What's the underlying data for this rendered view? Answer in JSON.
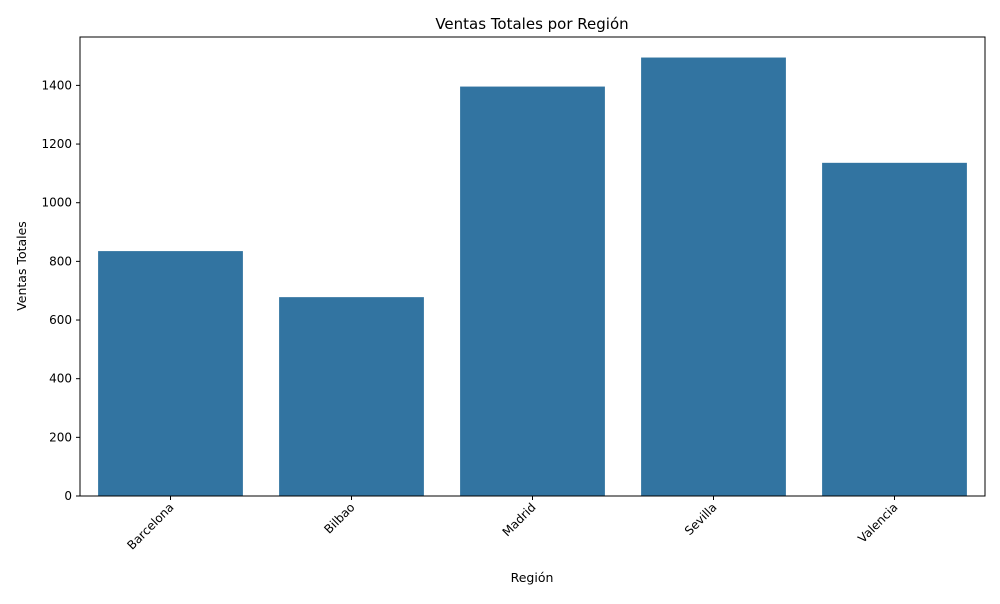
{
  "chart_data": {
    "type": "bar",
    "title": "Ventas Totales por Región",
    "xlabel": "Región",
    "ylabel": "Ventas Totales",
    "categories": [
      "Barcelona",
      "Bilbao",
      "Madrid",
      "Sevilla",
      "Valencia"
    ],
    "values": [
      835,
      678,
      1396,
      1495,
      1136
    ],
    "ylim": [
      0,
      1565
    ],
    "yticks": [
      0,
      200,
      400,
      600,
      800,
      1000,
      1200,
      1400
    ],
    "ytick_labels": [
      "0",
      "200",
      "400",
      "600",
      "800",
      "1000",
      "1200",
      "1400"
    ],
    "grid": false,
    "bar_color": "#3274a1",
    "xtick_rotation_deg": 45
  }
}
